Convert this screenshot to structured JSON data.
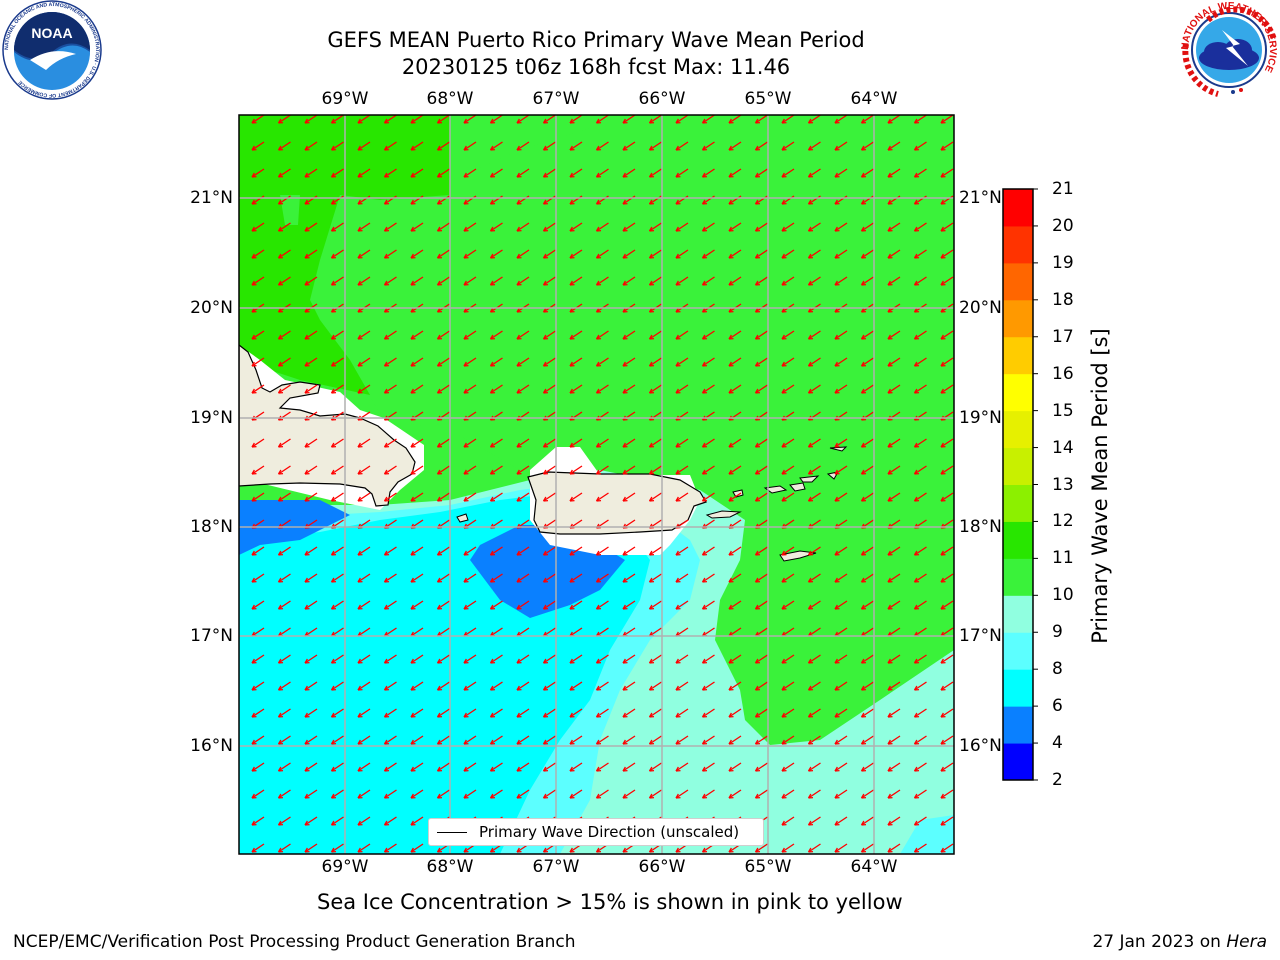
{
  "header": {
    "title_line1": "GEFS MEAN Puerto Rico Primary Wave Mean Period",
    "title_line2": "20230125 t06z 168h fcst   Max: 11.46"
  },
  "logos": {
    "noaa_text": "NOAA",
    "noaa_ring_text": "NATIONAL OCEANIC AND ATMOSPHERIC ADMINISTRATION · U.S. DEPARTMENT OF COMMERCE",
    "nws_ring_text": "NATIONAL WEATHER SERVICE"
  },
  "map": {
    "lon_ticks": [
      "69°W",
      "68°W",
      "67°W",
      "66°W",
      "65°W",
      "64°W"
    ],
    "lat_ticks": [
      "21°N",
      "20°N",
      "19°N",
      "18°N",
      "17°N",
      "16°N"
    ],
    "legend_label": "Primary Wave Direction (unscaled)",
    "arrow_color": "#ff0000",
    "land_color": "#efedde"
  },
  "colorbar": {
    "label": "Primary Wave Mean Period [s]",
    "ticks": [
      "2",
      "4",
      "6",
      "8",
      "9",
      "10",
      "11",
      "12",
      "13",
      "14",
      "15",
      "16",
      "17",
      "18",
      "19",
      "20",
      "21"
    ],
    "colors": [
      "#0000ff",
      "#0a80ff",
      "#00ffff",
      "#5cffff",
      "#90ffe0",
      "#3af23a",
      "#28e600",
      "#8cf000",
      "#c8f000",
      "#e6f000",
      "#ffff00",
      "#ffcc00",
      "#ff9900",
      "#ff6600",
      "#ff3300",
      "#ff0000"
    ]
  },
  "footer": {
    "note": "Sea Ice Concentration > 15% is shown in pink to yellow",
    "branch": "NCEP/EMC/Verification Post Processing Product Generation Branch",
    "date": "27 Jan 2023 on ",
    "machine": "Hera"
  }
}
